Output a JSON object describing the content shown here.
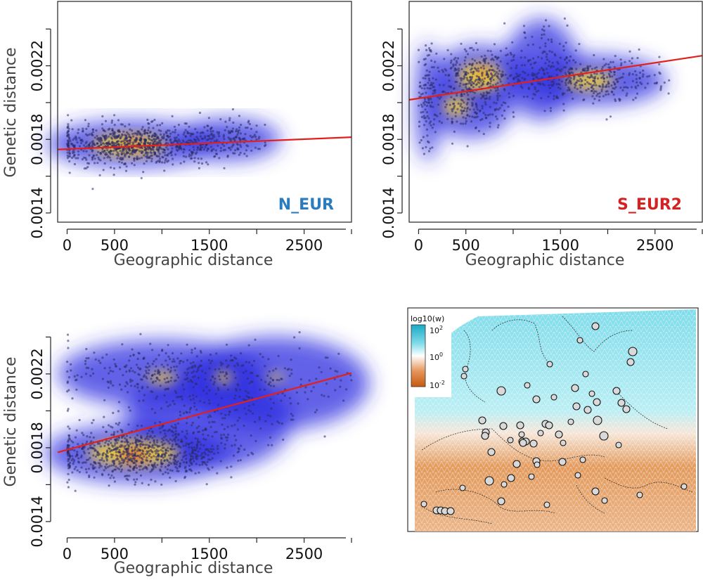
{
  "colors": {
    "point": "#2a2a66",
    "regression": "#e2201c",
    "label_n_eur": "#2b7bbf",
    "label_s_eur2": "#d42222",
    "density_low": "#2f2fe0",
    "density_mid": "#f2d23a",
    "density_high": "#dd1f1f",
    "map_high": "#35c8e0",
    "map_low": "#d8731f"
  },
  "chart_data": [
    {
      "type": "scatter",
      "panel_label": "N_EUR",
      "xlabel": "Geographic distance",
      "ylabel": "Genetic distance",
      "xlim": [
        -100,
        3000
      ],
      "ylim": [
        0.00135,
        0.00255
      ],
      "xticks": [
        0,
        500,
        1500,
        2500
      ],
      "xminor": [
        1000,
        2000
      ],
      "yticks": [
        "0.0014",
        "0.0018",
        "0.0022"
      ],
      "yticks_all": [
        0.0014,
        0.0016,
        0.0018,
        0.002,
        0.0022,
        0.0024
      ],
      "regression": {
        "x": [
          -100,
          3000
        ],
        "y": [
          0.001745,
          0.001812
        ]
      },
      "clusters": [
        {
          "cx": 700,
          "cy": 0.001775,
          "sx": 420,
          "sy": 5.5e-05,
          "n": 900
        },
        {
          "cx": 1700,
          "cy": 0.0018,
          "sx": 250,
          "sy": 5e-05,
          "n": 160
        }
      ],
      "hotspots": [
        {
          "x": 650,
          "y": 0.00177,
          "rx": 380,
          "ry": 6e-05,
          "level": "mid"
        },
        {
          "x": 700,
          "y": 0.001775,
          "rx": 120,
          "ry": 2e-05,
          "level": "high"
        }
      ],
      "x_range": [
        0,
        2100
      ]
    },
    {
      "type": "scatter",
      "panel_label": "S_EUR2",
      "xlabel": "Geographic distance",
      "ylabel": "",
      "xlim": [
        -100,
        3000
      ],
      "ylim": [
        0.00135,
        0.00255
      ],
      "xticks": [
        0,
        500,
        1500,
        2500
      ],
      "xminor": [
        1000,
        2000
      ],
      "yticks": [
        "0.0014",
        "0.0018",
        "0.0022"
      ],
      "yticks_all": [
        0.0014,
        0.0016,
        0.0018,
        0.002,
        0.0022,
        0.0024
      ],
      "regression": {
        "x": [
          -100,
          3000
        ],
        "y": [
          0.002015,
          0.002255
        ]
      },
      "clusters": [
        {
          "cx": 650,
          "cy": 0.00215,
          "sx": 220,
          "sy": 7e-05,
          "n": 300
        },
        {
          "cx": 550,
          "cy": 0.00197,
          "sx": 200,
          "sy": 7e-05,
          "n": 160
        },
        {
          "cx": 1850,
          "cy": 0.00212,
          "sx": 350,
          "sy": 6e-05,
          "n": 320
        },
        {
          "cx": 1300,
          "cy": 0.00218,
          "sx": 180,
          "sy": 0.00012,
          "n": 120
        },
        {
          "cx": 100,
          "cy": 0.002,
          "sx": 60,
          "sy": 0.00014,
          "n": 110
        }
      ],
      "hotspots": [
        {
          "x": 650,
          "y": 0.00214,
          "rx": 230,
          "ry": 8e-05,
          "level": "mid"
        },
        {
          "x": 680,
          "y": 0.002165,
          "rx": 80,
          "ry": 2e-05,
          "level": "high"
        },
        {
          "x": 1800,
          "y": 0.00212,
          "rx": 260,
          "ry": 5e-05,
          "level": "mid"
        },
        {
          "x": 400,
          "y": 0.00198,
          "rx": 140,
          "ry": 5e-05,
          "level": "mid"
        }
      ],
      "x_range": [
        0,
        2800
      ]
    },
    {
      "type": "scatter",
      "panel_label": "",
      "xlabel": "Geographic distance",
      "ylabel": "Genetic distance",
      "xlim": [
        -100,
        3000
      ],
      "ylim": [
        0.00135,
        0.00255
      ],
      "xticks": [
        0,
        500,
        1500,
        2500
      ],
      "xminor": [
        1000,
        2000
      ],
      "yticks": [
        "0.0014",
        "0.0018",
        "0.0022"
      ],
      "yticks_all": [
        0.0014,
        0.0016,
        0.0018,
        0.002,
        0.0022,
        0.0024
      ],
      "regression": {
        "x": [
          -100,
          3000
        ],
        "y": [
          0.001775,
          0.002205
        ]
      },
      "clusters": [
        {
          "cx": 750,
          "cy": 0.00177,
          "sx": 450,
          "sy": 7e-05,
          "n": 800
        },
        {
          "cx": 1000,
          "cy": 0.0022,
          "sx": 500,
          "sy": 8e-05,
          "n": 300
        },
        {
          "cx": 2200,
          "cy": 0.00215,
          "sx": 450,
          "sy": 0.00011,
          "n": 120
        },
        {
          "cx": 1500,
          "cy": 0.00195,
          "sx": 400,
          "sy": 0.00012,
          "n": 160
        }
      ],
      "hotspots": [
        {
          "x": 700,
          "y": 0.00177,
          "rx": 480,
          "ry": 7e-05,
          "level": "mid"
        },
        {
          "x": 700,
          "y": 0.00176,
          "rx": 160,
          "ry": 3e-05,
          "level": "high"
        },
        {
          "x": 1000,
          "y": 0.00218,
          "rx": 160,
          "ry": 3e-05,
          "level": "mid"
        },
        {
          "x": 1650,
          "y": 0.00218,
          "rx": 90,
          "ry": 3e-05,
          "level": "mid"
        },
        {
          "x": 2200,
          "y": 0.00218,
          "rx": 90,
          "ry": 2e-05,
          "level": "mid"
        }
      ],
      "x_range": [
        0,
        3000
      ]
    }
  ],
  "map": {
    "legend_title": "log10(w)",
    "legend_ticks": [
      {
        "base": "10",
        "exp": "2"
      },
      {
        "base": "10",
        "exp": "0"
      },
      {
        "base": "10",
        "exp": "-2"
      }
    ]
  }
}
